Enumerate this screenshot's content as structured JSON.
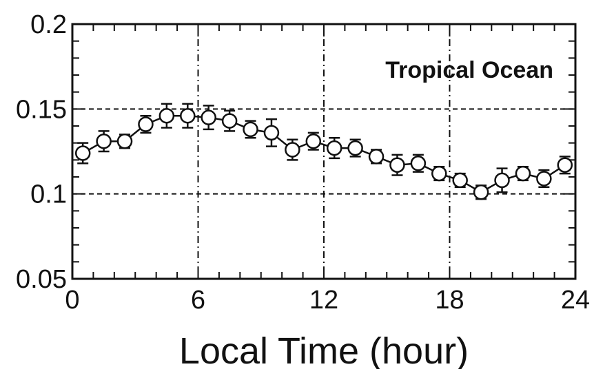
{
  "chart_data": {
    "type": "scatter",
    "title": "",
    "xlabel": "Local Time (hour)",
    "ylabel": "",
    "annotation": "Tropical Ocean",
    "xlim": [
      0,
      24
    ],
    "ylim": [
      0.05,
      0.2
    ],
    "x_ticks": [
      0,
      6,
      12,
      18,
      24
    ],
    "x_tick_labels": [
      "0",
      "6",
      "12",
      "18",
      "24"
    ],
    "y_ticks": [
      0.05,
      0.1,
      0.15,
      0.2
    ],
    "y_tick_labels": [
      "0.05",
      "0.1",
      "0.15",
      "0.2"
    ],
    "grid": "dashed at major ticks",
    "marker": "open circle with error bars, connected by line",
    "series": [
      {
        "x": [
          0.5,
          1.5,
          2.5,
          3.5,
          4.5,
          5.5,
          6.5,
          7.5,
          8.5,
          9.5,
          10.5,
          11.5,
          12.5,
          13.5,
          14.5,
          15.5,
          16.5,
          17.5,
          18.5,
          19.5,
          20.5,
          21.5,
          22.5,
          23.5
        ],
        "y": [
          0.124,
          0.131,
          0.131,
          0.141,
          0.146,
          0.146,
          0.145,
          0.143,
          0.138,
          0.136,
          0.126,
          0.131,
          0.127,
          0.127,
          0.122,
          0.117,
          0.118,
          0.112,
          0.108,
          0.101,
          0.108,
          0.112,
          0.109,
          0.117
        ],
        "err": [
          0.006,
          0.006,
          0.004,
          0.005,
          0.007,
          0.007,
          0.007,
          0.006,
          0.005,
          0.008,
          0.006,
          0.005,
          0.006,
          0.005,
          0.004,
          0.006,
          0.005,
          0.004,
          0.004,
          0.004,
          0.007,
          0.004,
          0.005,
          0.005
        ]
      }
    ]
  },
  "colors": {
    "ink": "#111111",
    "background": "#ffffff"
  }
}
